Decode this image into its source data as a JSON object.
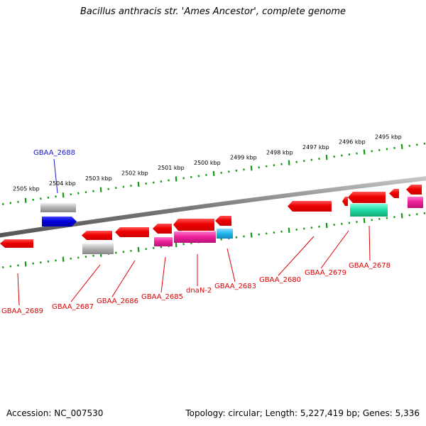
{
  "title": "Bacillus anthracis str. 'Ames Ancestor', complete genome",
  "footer": {
    "accession": "Accession: NC_007530",
    "summary": "Topology: circular; Length: 5,227,419 bp; Genes: 5,336"
  },
  "colors": {
    "backbone": "#888888",
    "ticks": "#119911",
    "gene_cds": "#ee0000",
    "gene_forward": "#0000dd",
    "gene_feature_magenta": "#ee2299",
    "gene_feature_cyan": "#22bbee",
    "gene_feature_green": "#22ddaa",
    "gene_feature_gray": "#aaaaaa",
    "gene_label_reverse": "#dd0000",
    "gene_label_forward": "#1a1acc"
  },
  "scale": {
    "unit": "kbp",
    "labels": [
      "2505 kbp",
      "2504 kbp",
      "2503 kbp",
      "2502 kbp",
      "2501 kbp",
      "2500 kbp",
      "2499 kbp",
      "2498 kbp",
      "2497 kbp",
      "2496 kbp",
      "2495 kbp"
    ]
  },
  "gene_labels": [
    {
      "text": "GBAA_2688",
      "strand": "forward"
    },
    {
      "text": "GBAA_2689",
      "strand": "reverse"
    },
    {
      "text": "GBAA_2687",
      "strand": "reverse"
    },
    {
      "text": "GBAA_2686",
      "strand": "reverse"
    },
    {
      "text": "GBAA_2685",
      "strand": "reverse"
    },
    {
      "text": "dnaN-2",
      "strand": "reverse"
    },
    {
      "text": "GBAA_2683",
      "strand": "reverse"
    },
    {
      "text": "GBAA_2680",
      "strand": "reverse"
    },
    {
      "text": "GBAA_2679",
      "strand": "reverse"
    },
    {
      "text": "GBAA_2678",
      "strand": "reverse"
    }
  ]
}
